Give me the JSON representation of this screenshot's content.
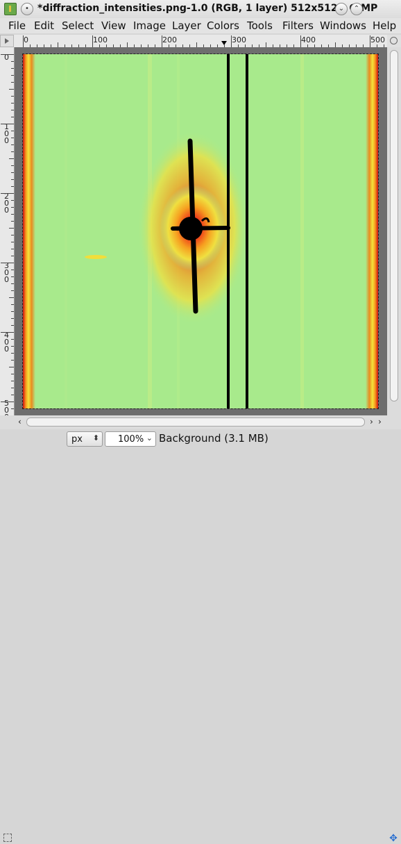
{
  "window": {
    "title": "*diffraction_intensities.png-1.0 (RGB, 1 layer) 512x512 – GIMP"
  },
  "menu": [
    {
      "label": "File"
    },
    {
      "label": "Edit"
    },
    {
      "label": "Select"
    },
    {
      "label": "View"
    },
    {
      "label": "Image"
    },
    {
      "label": "Layer"
    },
    {
      "label": "Colors"
    },
    {
      "label": "Tools"
    },
    {
      "label": "Filters"
    },
    {
      "label": "Windows"
    },
    {
      "label": "Help"
    }
  ],
  "rulers": {
    "horizontal_labels": [
      "0",
      "100",
      "200",
      "300",
      "400",
      "500"
    ],
    "vertical_labels": [
      "0",
      "100",
      "200",
      "300",
      "400",
      "500"
    ]
  },
  "statusbar": {
    "unit": "px",
    "zoom": "100%",
    "layer_info": "Background (3.1 MB)"
  },
  "icons": {
    "app": "gimp-wilber-icon",
    "menu_button": "window-menu-icon",
    "minimize": "chevron-down-icon",
    "maximize": "chevron-up-icon",
    "navigate": "move-navigate-icon"
  },
  "colors": {
    "image_background": "#a8ea8c",
    "hot_core": "#e8201a",
    "warm_halo": "#f3c92a",
    "mask_line": "#000000"
  }
}
